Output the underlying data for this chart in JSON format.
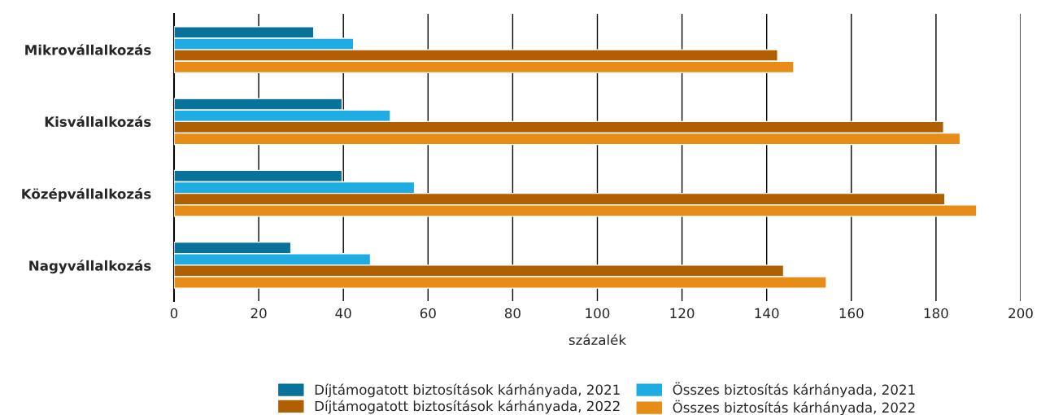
{
  "chart_data": {
    "type": "bar",
    "orientation": "horizontal",
    "xlabel": "százalék",
    "categories": [
      "Mikrovállalkozás",
      "Kisvállalkozás",
      "Középvállalkozás",
      "Nagyvállalkozás"
    ],
    "series": [
      {
        "name": "Díjtámogatott biztosítások kárhányada, 2021",
        "color": "#08729a",
        "values": [
          33.0,
          39.7,
          39.7,
          27.6
        ]
      },
      {
        "name": "Összes biztosítás kárhányada, 2021",
        "color": "#1eace2",
        "values": [
          42.4,
          51.1,
          56.8,
          46.4
        ]
      },
      {
        "name": "Díjtámogatott biztosítások kárhányada, 2022",
        "color": "#b06000",
        "values": [
          142.6,
          181.8,
          182.1,
          144.0
        ]
      },
      {
        "name": "Összes biztosítás kárhányada, 2022",
        "color": "#e88c18",
        "values": [
          146.4,
          185.7,
          189.6,
          154.1
        ]
      }
    ],
    "xlim": [
      0,
      200
    ],
    "xticks": [
      0,
      20,
      40,
      60,
      80,
      100,
      120,
      140,
      160,
      180,
      200
    ],
    "grid": "x",
    "legend": "bottom"
  }
}
